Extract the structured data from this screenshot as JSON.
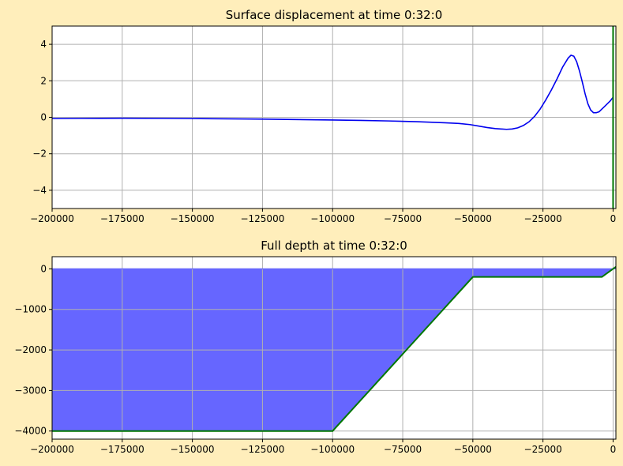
{
  "chart_data": [
    {
      "type": "line",
      "title": "Surface displacement at time 0:32:0",
      "xlabel": "",
      "ylabel": "",
      "xlim": [
        -200000,
        1000
      ],
      "ylim": [
        -5,
        5
      ],
      "grid": true,
      "x_ticks": [
        -200000,
        -175000,
        -150000,
        -125000,
        -100000,
        -75000,
        -50000,
        -25000,
        0
      ],
      "x_tick_labels": [
        "−200000",
        "−175000",
        "−150000",
        "−125000",
        "−100000",
        "−75000",
        "−50000",
        "−25000",
        "0"
      ],
      "y_ticks": [
        -4,
        -2,
        0,
        2,
        4
      ],
      "y_tick_labels": [
        "−4",
        "−2",
        "0",
        "2",
        "4"
      ],
      "series": [
        {
          "color": "#0000ee",
          "x": [
            -200000,
            -190000,
            -175000,
            -160000,
            -150000,
            -125000,
            -100000,
            -90000,
            -80000,
            -70000,
            -60000,
            -55000,
            -51000,
            -48000,
            -45000,
            -42000,
            -40000,
            -38000,
            -36000,
            -34000,
            -32000,
            -30000,
            -28000,
            -26000,
            -24000,
            -22000,
            -20000,
            -18000,
            -16000,
            -15000,
            -14000,
            -13000,
            -12000,
            -11000,
            -10000,
            -9000,
            -8000,
            -7000,
            -6000,
            -5000,
            -4000,
            -3000,
            -2000,
            -1000,
            0
          ],
          "y": [
            -0.07,
            -0.06,
            -0.05,
            -0.06,
            -0.07,
            -0.1,
            -0.15,
            -0.17,
            -0.2,
            -0.24,
            -0.3,
            -0.34,
            -0.4,
            -0.48,
            -0.56,
            -0.62,
            -0.64,
            -0.66,
            -0.64,
            -0.58,
            -0.45,
            -0.25,
            0.05,
            0.45,
            0.95,
            1.5,
            2.1,
            2.75,
            3.25,
            3.4,
            3.35,
            3.05,
            2.55,
            1.95,
            1.3,
            0.75,
            0.4,
            0.25,
            0.25,
            0.3,
            0.45,
            0.6,
            0.75,
            0.9,
            1.1
          ]
        }
      ],
      "marker_x": 0,
      "marker_color": "#007700"
    },
    {
      "type": "area",
      "title": "Full depth at time 0:32:0",
      "xlabel": "",
      "ylabel": "",
      "xlim": [
        -200000,
        1000
      ],
      "ylim": [
        -4200,
        300
      ],
      "grid": true,
      "x_ticks": [
        -200000,
        -175000,
        -150000,
        -125000,
        -100000,
        -75000,
        -50000,
        -25000,
        0
      ],
      "x_tick_labels": [
        "−200000",
        "−175000",
        "−150000",
        "−125000",
        "−100000",
        "−75000",
        "−50000",
        "−25000",
        "0"
      ],
      "y_ticks": [
        -4000,
        -3000,
        -2000,
        -1000,
        0
      ],
      "y_tick_labels": [
        "−4000",
        "−3000",
        "−2000",
        "−1000",
        "0"
      ],
      "water_color": "#6666ff",
      "bottom_color": "#007700",
      "surface": {
        "x": [
          -200000,
          1000
        ],
        "y": [
          0,
          0
        ]
      },
      "bottom": {
        "x": [
          -200000,
          -100000,
          -50000,
          -4000,
          1000
        ],
        "y": [
          -4000,
          -4000,
          -200,
          -200,
          50
        ]
      }
    }
  ]
}
